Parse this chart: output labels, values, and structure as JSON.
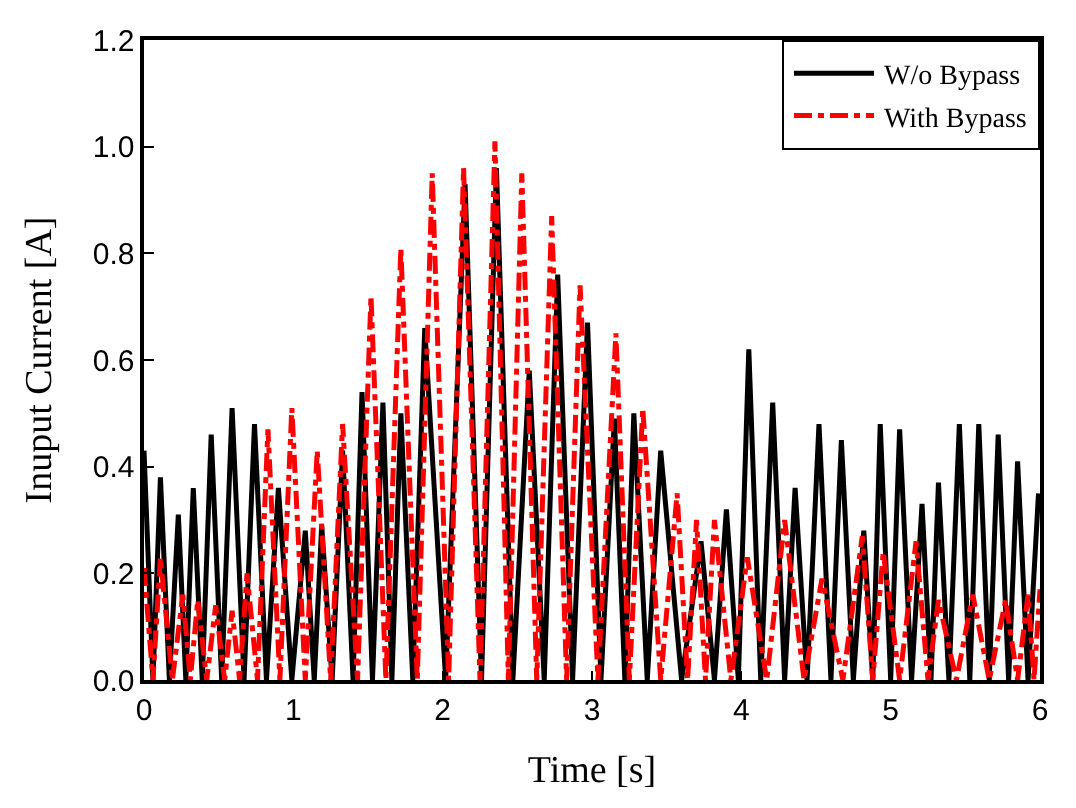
{
  "chart_data": {
    "type": "line",
    "xlabel": "Time [s]",
    "ylabel": "Inuput Current [A]",
    "xlim": [
      0,
      6
    ],
    "xticks": [
      0,
      1,
      2,
      3,
      4,
      5,
      6
    ],
    "ylim": [
      0,
      1.2
    ],
    "yticks": [
      {
        "value": 0,
        "label": "0.0"
      },
      {
        "value": 0.2,
        "label": "0.2"
      },
      {
        "value": 0.4,
        "label": "0.4"
      },
      {
        "value": 0.6,
        "label": "0.6"
      },
      {
        "value": 0.8,
        "label": "0.8"
      },
      {
        "value": 1.0,
        "label": "1.0"
      },
      {
        "value": 1.2,
        "label": "1.2"
      }
    ],
    "legend": "top right",
    "marker": "none",
    "series": [
      {
        "name": "W/o Bypass",
        "color": "#000000",
        "line_style": "solid",
        "x": [
          0,
          0.06,
          0.11,
          0.17,
          0.23,
          0.28,
          0.33,
          0.39,
          0.45,
          0.52,
          0.59,
          0.67,
          0.74,
          0.82,
          0.9,
          0.99,
          1.08,
          1.14,
          1.19,
          1.26,
          1.33,
          1.4,
          1.46,
          1.53,
          1.6,
          1.66,
          1.72,
          1.8,
          1.88,
          2.02,
          2.15,
          2.26,
          2.36,
          2.47,
          2.58,
          2.68,
          2.77,
          2.87,
          2.97,
          3.06,
          3.15,
          3.22,
          3.28,
          3.37,
          3.46,
          3.6,
          3.73,
          3.82,
          3.9,
          3.98,
          4.05,
          4.13,
          4.21,
          4.29,
          4.36,
          4.44,
          4.52,
          4.6,
          4.67,
          4.75,
          4.82,
          4.88,
          4.93,
          5.0,
          5.06,
          5.14,
          5.21,
          5.27,
          5.32,
          5.39,
          5.46,
          5.53,
          5.59,
          5.66,
          5.72,
          5.79,
          5.85,
          5.92,
          5.99
        ],
        "values": [
          0.43,
          0,
          0.38,
          0,
          0.31,
          0,
          0.36,
          0,
          0.46,
          0,
          0.51,
          0,
          0.48,
          0,
          0.36,
          0,
          0.28,
          0,
          0.29,
          0,
          0.43,
          0,
          0.54,
          0,
          0.52,
          0,
          0.5,
          0,
          0.66,
          0,
          0.93,
          0,
          0.96,
          0,
          0.58,
          0,
          0.76,
          0,
          0.67,
          0,
          0.49,
          0,
          0.5,
          0,
          0.43,
          0,
          0.26,
          0,
          0.32,
          0,
          0.62,
          0,
          0.52,
          0,
          0.36,
          0,
          0.48,
          0,
          0.45,
          0,
          0.28,
          0,
          0.48,
          0,
          0.47,
          0,
          0.33,
          0,
          0.37,
          0,
          0.48,
          0,
          0.48,
          0,
          0.46,
          0,
          0.41,
          0,
          0.35
        ]
      },
      {
        "name": "With Bypass",
        "color": "#ff0000",
        "line_style": "dashdot",
        "x": [
          0,
          0.06,
          0.11,
          0.19,
          0.26,
          0.31,
          0.36,
          0.42,
          0.48,
          0.54,
          0.59,
          0.64,
          0.69,
          0.76,
          0.83,
          0.91,
          0.99,
          1.08,
          1.16,
          1.25,
          1.33,
          1.43,
          1.52,
          1.62,
          1.72,
          1.83,
          1.93,
          2.04,
          2.14,
          2.25,
          2.35,
          2.44,
          2.53,
          2.63,
          2.73,
          2.83,
          2.92,
          3.04,
          3.16,
          3.25,
          3.34,
          3.46,
          3.57,
          3.64,
          3.7,
          3.76,
          3.82,
          3.93,
          4.04,
          4.17,
          4.29,
          4.42,
          4.54,
          4.68,
          4.81,
          4.88,
          4.95,
          5.06,
          5.17,
          5.25,
          5.32,
          5.44,
          5.55,
          5.66,
          5.77,
          5.85,
          5.92,
          5.96,
          6.0
        ],
        "values": [
          0.21,
          0,
          0.23,
          0,
          0.16,
          0,
          0.15,
          0,
          0.14,
          0,
          0.13,
          0,
          0.2,
          0,
          0.47,
          0,
          0.51,
          0,
          0.43,
          0,
          0.48,
          0,
          0.72,
          0,
          0.81,
          0,
          0.95,
          0,
          0.96,
          0,
          1.01,
          0,
          0.95,
          0,
          0.87,
          0,
          0.74,
          0,
          0.65,
          0,
          0.51,
          0,
          0.35,
          0,
          0.3,
          0,
          0.3,
          0,
          0.23,
          0,
          0.3,
          0,
          0.19,
          0,
          0.27,
          0,
          0.24,
          0,
          0.26,
          0,
          0.15,
          0,
          0.16,
          0,
          0.15,
          0,
          0.16,
          0,
          0.17
        ]
      }
    ]
  }
}
